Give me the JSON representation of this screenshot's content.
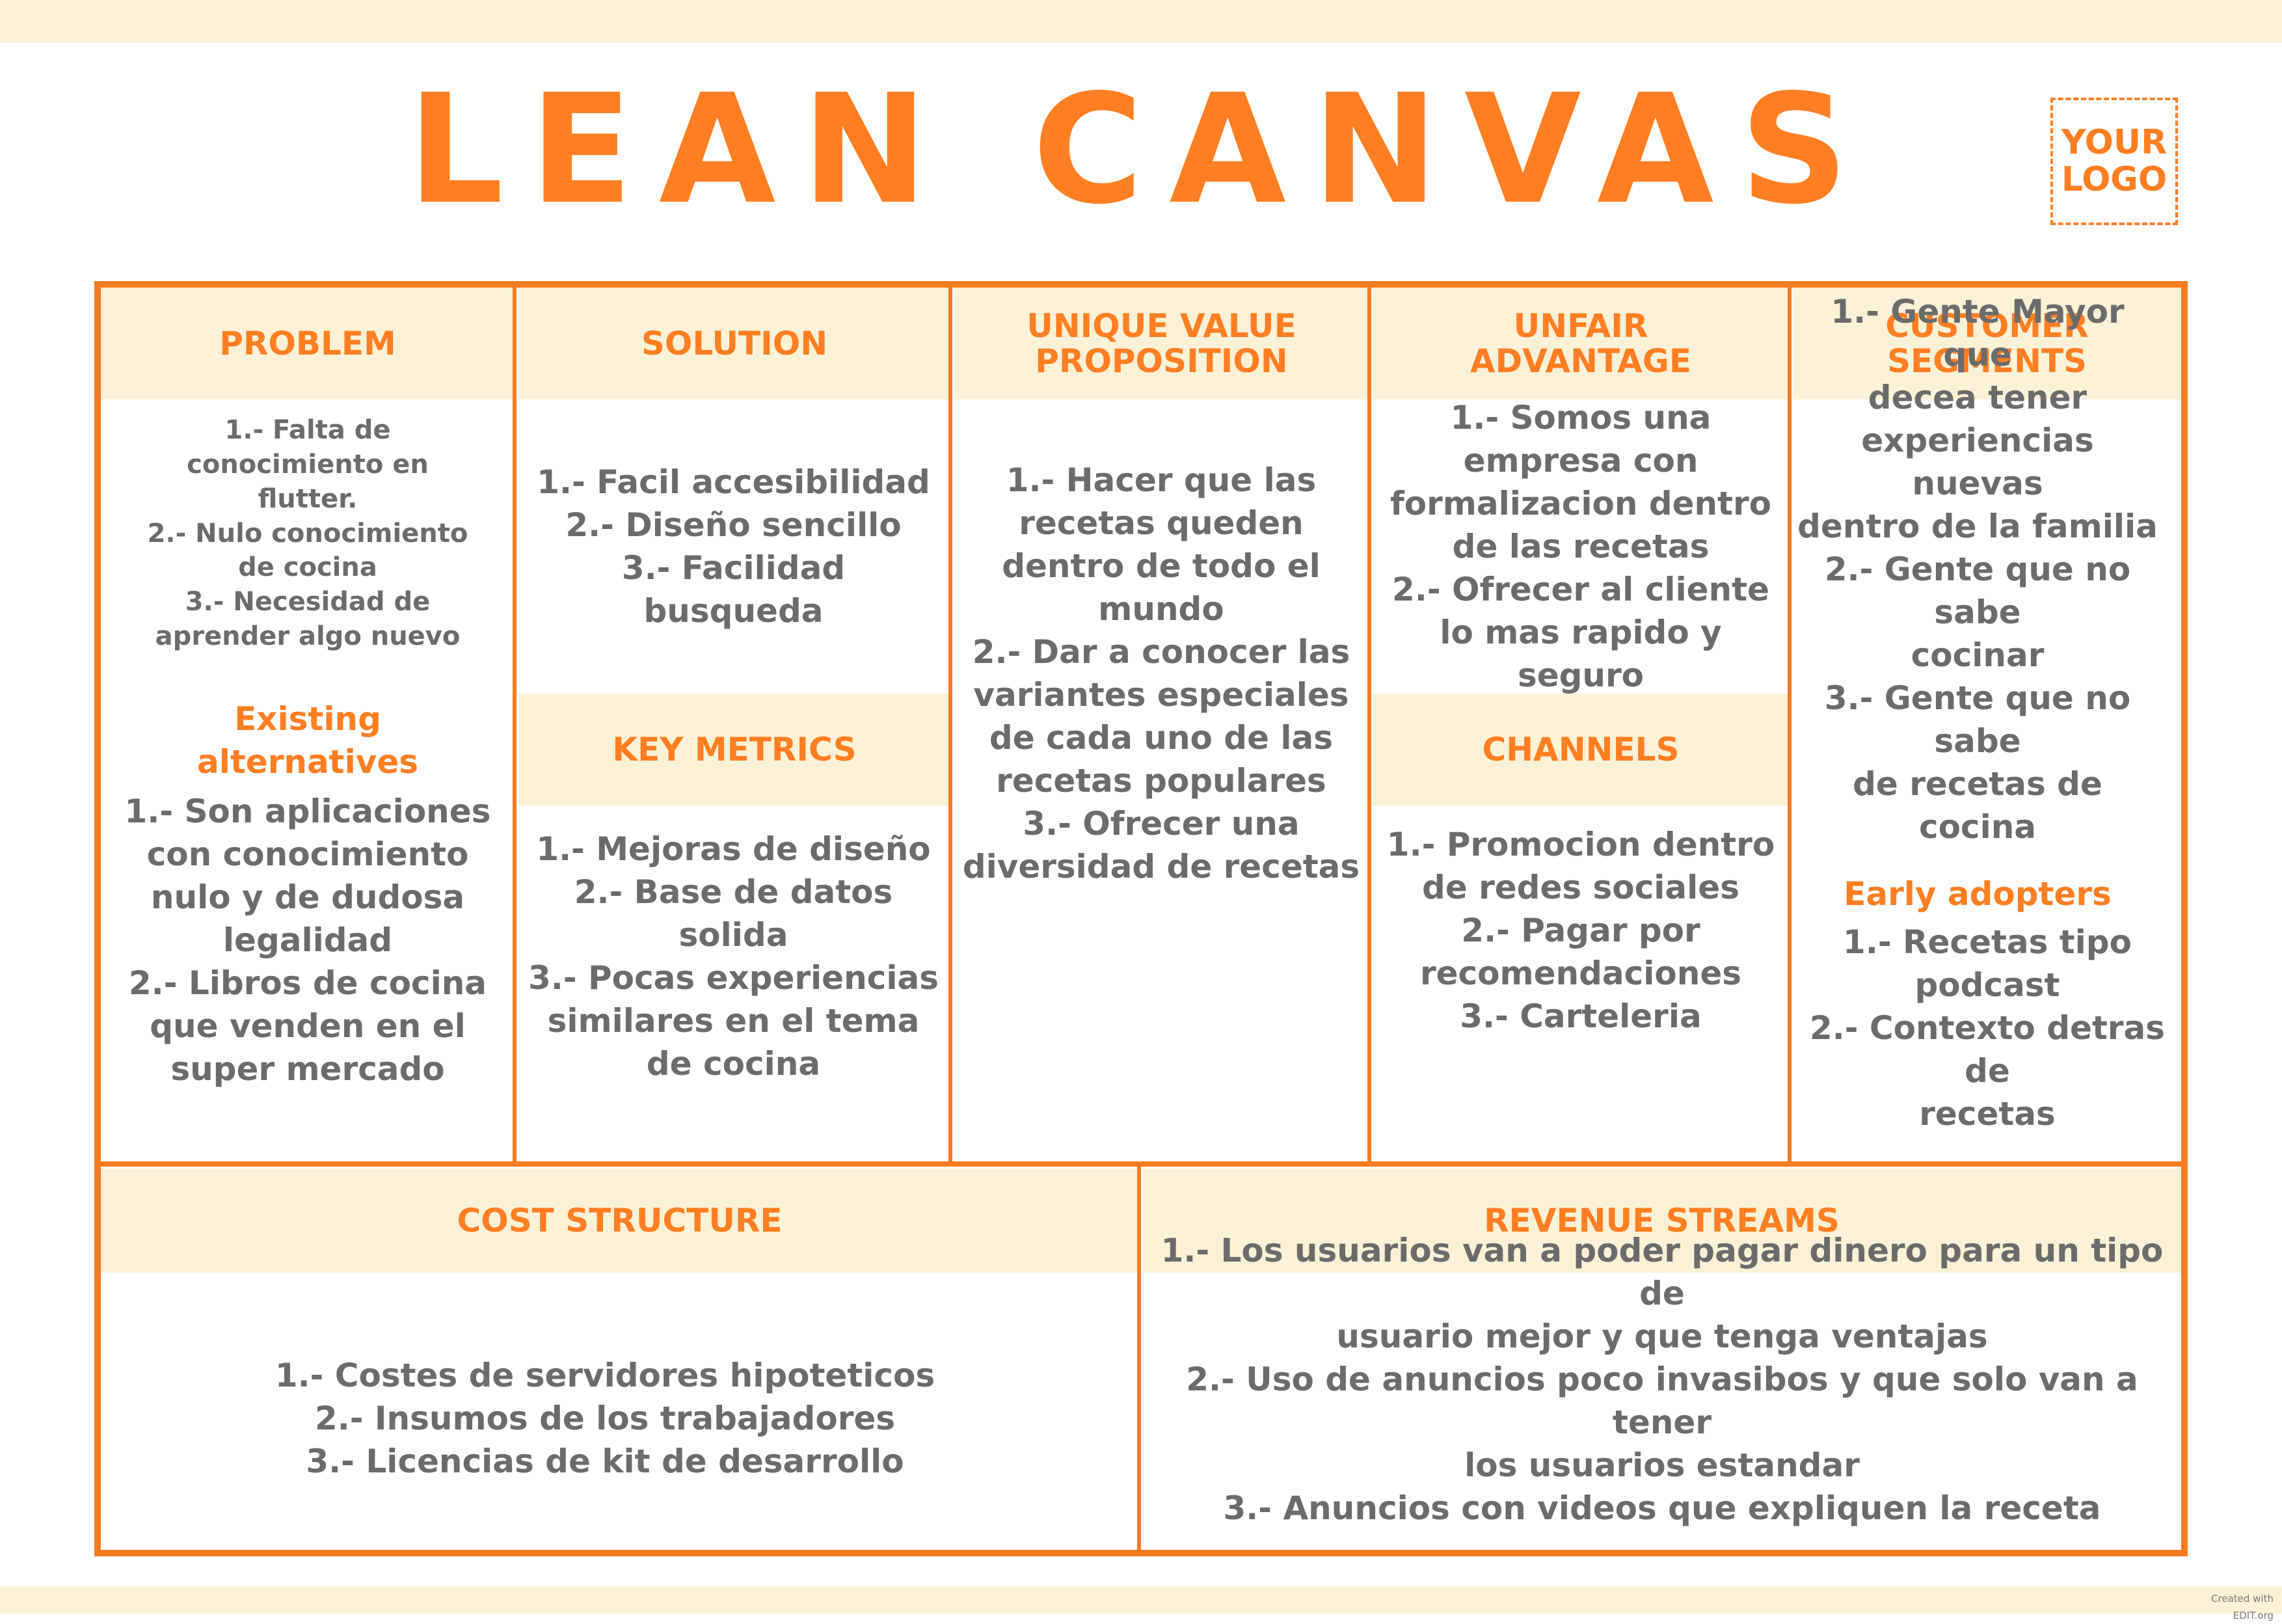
{
  "title": "LEAN CANVAS",
  "logo": {
    "line1": "YOUR",
    "line2": "LOGO"
  },
  "colors": {
    "accent": "#ff7e22",
    "border": "#f47b20",
    "header_fill": "#fbf1d6",
    "body_text": "#6b6b6b"
  },
  "sections": {
    "problem": {
      "heading": "PROBLEM",
      "items": "1.- Falta de\nconocimiento en\nflutter.\n2.- Nulo conocimiento\nde cocina\n3.- Necesidad de\naprender algo nuevo"
    },
    "existing_alternatives": {
      "heading": "Existing\nalternatives",
      "items": "1.- Son aplicaciones\ncon conocimiento\nnulo y de dudosa\nlegalidad\n2.- Libros de cocina\nque venden en el\nsuper mercado"
    },
    "solution": {
      "heading": "SOLUTION",
      "items": "1.- Facil accesibilidad\n2.- Diseño sencillo\n3.- Facilidad\nbusqueda"
    },
    "key_metrics": {
      "heading": "KEY METRICS",
      "items": "1.- Mejoras de diseño\n2.- Base de datos\nsolida\n3.- Pocas experiencias\nsimilares en el tema\nde cocina"
    },
    "unique_value_proposition": {
      "heading": "UNIQUE VALUE\nPROPOSITION",
      "items": "1.- Hacer que las\nrecetas queden\ndentro de todo el\nmundo\n2.- Dar a conocer las\nvariantes especiales\nde cada uno de las\nrecetas populares\n3.- Ofrecer una\ndiversidad de recetas"
    },
    "unfair_advantage": {
      "heading": "UNFAIR\nADVANTAGE",
      "items": "1.- Somos una\nempresa con\nformalizacion dentro\nde las recetas\n2.- Ofrecer al cliente\nlo mas rapido y\nseguro"
    },
    "channels": {
      "heading": "CHANNELS",
      "items": "1.- Promocion dentro\nde redes sociales\n2.- Pagar por\nrecomendaciones\n3.- Carteleria"
    },
    "customer_segments": {
      "heading": "CUSTOMER\nSEGMENTS",
      "items": "1.- Gente Mayor que\ndecea tener\nexperiencias nuevas\ndentro de la familia\n2.- Gente que no sabe\ncocinar\n3.- Gente que no sabe\nde recetas de cocina"
    },
    "early_adopters": {
      "heading": "Early adopters",
      "items": "1.- Recetas tipo\npodcast\n2.- Contexto detras de\nrecetas"
    },
    "cost_structure": {
      "heading": "COST STRUCTURE",
      "items": "1.- Costes de servidores hipoteticos\n2.- Insumos de los trabajadores\n3.- Licencias de kit de desarrollo"
    },
    "revenue_streams": {
      "heading": "REVENUE STREAMS",
      "items": "1.- Los usuarios van a poder pagar dinero para un tipo de\nusuario mejor y que tenga ventajas\n2.- Uso de anuncios poco invasibos y que solo van a tener\nlos usuarios estandar\n3.- Anuncios con videos que expliquen la receta"
    }
  },
  "credit": "Created with EDIT.org"
}
